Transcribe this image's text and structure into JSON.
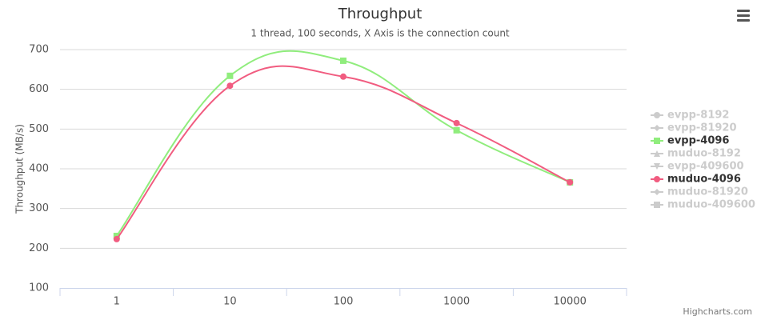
{
  "chart_data": {
    "type": "spline",
    "title": "Throughput",
    "subtitle": "1 thread, 100 seconds, X Axis is the connection count",
    "y_axis_label": "Throughput (MB/s)",
    "credits": "Highcharts.com",
    "categories": [
      "1",
      "10",
      "100",
      "1000",
      "10000"
    ],
    "ylim": [
      100,
      700
    ],
    "yticks": [
      100,
      200,
      300,
      400,
      500,
      600,
      700
    ],
    "grid": true,
    "legend_position": "right",
    "series": [
      {
        "name": "evpp-8192",
        "color": "#7cb5ec",
        "marker": "circle",
        "visible": false,
        "values": [
          null,
          null,
          null,
          null,
          null
        ]
      },
      {
        "name": "evpp-81920",
        "color": "#434348",
        "marker": "diamond",
        "visible": false,
        "values": [
          null,
          null,
          null,
          null,
          null
        ]
      },
      {
        "name": "evpp-4096",
        "color": "#90ed7d",
        "marker": "square",
        "visible": true,
        "values": [
          231,
          634,
          672,
          497,
          366
        ]
      },
      {
        "name": "muduo-8192",
        "color": "#f7a35c",
        "marker": "triangle",
        "visible": false,
        "values": [
          null,
          null,
          null,
          null,
          null
        ]
      },
      {
        "name": "evpp-409600",
        "color": "#8085e9",
        "marker": "triangle-down",
        "visible": false,
        "values": [
          null,
          null,
          null,
          null,
          null
        ]
      },
      {
        "name": "muduo-4096",
        "color": "#f15c80",
        "marker": "circle",
        "visible": true,
        "values": [
          223,
          609,
          632,
          515,
          366
        ]
      },
      {
        "name": "muduo-81920",
        "color": "#e4d354",
        "marker": "diamond",
        "visible": false,
        "values": [
          null,
          null,
          null,
          null,
          null
        ]
      },
      {
        "name": "muduo-409600",
        "color": "#2b908f",
        "marker": "square",
        "visible": false,
        "values": [
          null,
          null,
          null,
          null,
          null
        ]
      }
    ]
  }
}
